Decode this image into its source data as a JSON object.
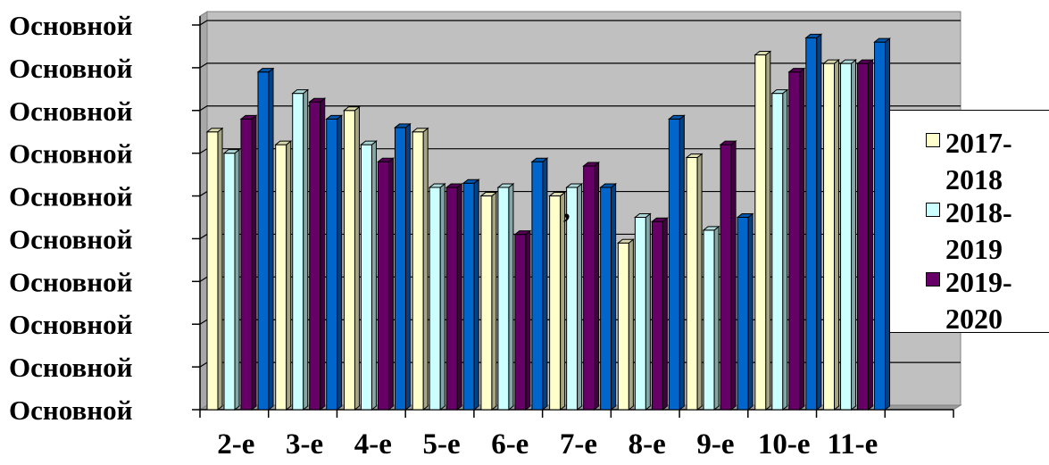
{
  "chart_data": {
    "type": "bar",
    "categories": [
      "2-е",
      "3-е",
      "4-е",
      "5-е",
      "6-е",
      "7-е",
      "8-е",
      "9-е",
      "10-е",
      "11-е"
    ],
    "y_tick_labels": [
      "Основной",
      "Основной",
      "Основной",
      "Основной",
      "Основной",
      "Основной",
      "Основной",
      "Основной",
      "Основной",
      "Основной"
    ],
    "ylim": [
      0,
      9
    ],
    "grid": true,
    "legend_position": "right",
    "annotation": ",",
    "series": [
      {
        "name": "2017-2018",
        "color": "#FFFFCC",
        "values": [
          6.5,
          6.2,
          7.0,
          6.5,
          5.0,
          5.0,
          3.9,
          5.9,
          8.3,
          8.1
        ]
      },
      {
        "name": "2018-2019",
        "color": "#CCFFFF",
        "values": [
          6.0,
          7.4,
          6.2,
          5.2,
          5.2,
          5.2,
          4.5,
          4.2,
          7.4,
          8.1
        ]
      },
      {
        "name": "2019-2020",
        "color": "#660066",
        "values": [
          6.8,
          7.2,
          5.8,
          5.2,
          4.1,
          5.7,
          4.4,
          6.2,
          7.9,
          8.1
        ]
      },
      {
        "name": "",
        "color": "#0066CC",
        "values": [
          7.9,
          6.8,
          6.6,
          5.3,
          5.8,
          5.2,
          6.8,
          4.5,
          8.7,
          8.6
        ]
      }
    ]
  },
  "legend": {
    "items": [
      {
        "line1": "2017-",
        "line2": "2018"
      },
      {
        "line1": "2018-",
        "line2": "2019"
      },
      {
        "line1": "2019-",
        "line2": "2020"
      }
    ]
  }
}
